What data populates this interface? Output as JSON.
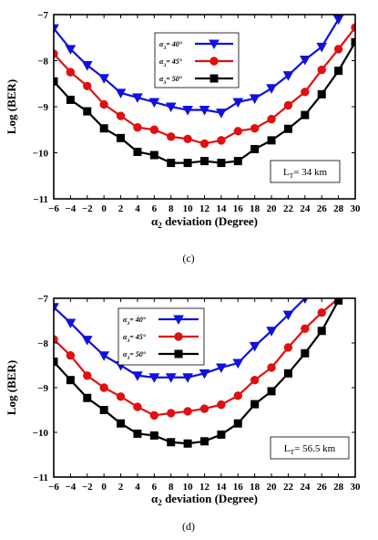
{
  "chart_data": [
    {
      "type": "line",
      "panel_label": "(c)",
      "xlabel": "α2 deviation (Degree)",
      "ylabel": "Log (BER)",
      "xlim": [
        -6,
        30
      ],
      "ylim": [
        -11,
        -7
      ],
      "xticks": [
        -6,
        -4,
        -2,
        0,
        2,
        4,
        6,
        8,
        10,
        12,
        14,
        16,
        18,
        20,
        22,
        24,
        26,
        28,
        30
      ],
      "yticks": [
        -11,
        -10,
        -9,
        -8,
        -7
      ],
      "grid": false,
      "legend_position": "top-center",
      "annotation": "L_T= 34 km",
      "x": [
        -6,
        -4,
        -2,
        0,
        2,
        4,
        6,
        8,
        10,
        12,
        14,
        16,
        18,
        20,
        22,
        24,
        26,
        28,
        30
      ],
      "series": [
        {
          "name": "α3= 40°",
          "color": "#1010e0",
          "marker": "triangle-down",
          "values": [
            -7.3,
            -7.75,
            -8.1,
            -8.38,
            -8.7,
            -8.8,
            -8.9,
            -9.0,
            -9.07,
            -9.07,
            -9.13,
            -8.9,
            -8.82,
            -8.6,
            -8.32,
            -7.98,
            -7.7,
            -7.1,
            null
          ]
        },
        {
          "name": "α3= 45°",
          "color": "#e01010",
          "marker": "circle",
          "values": [
            -7.85,
            -8.25,
            -8.55,
            -8.95,
            -9.2,
            -9.45,
            -9.5,
            -9.65,
            -9.7,
            -9.8,
            -9.73,
            -9.53,
            -9.47,
            -9.27,
            -8.97,
            -8.68,
            -8.2,
            -7.75,
            -7.28
          ]
        },
        {
          "name": "α3= 50°",
          "color": "#000000",
          "marker": "square",
          "values": [
            -8.45,
            -8.85,
            -9.1,
            -9.47,
            -9.68,
            -9.98,
            -10.05,
            -10.22,
            -10.22,
            -10.18,
            -10.22,
            -10.18,
            -9.92,
            -9.73,
            -9.48,
            -9.18,
            -8.73,
            -8.22,
            -7.6
          ]
        }
      ]
    },
    {
      "type": "line",
      "panel_label": "(d)",
      "xlabel": "α2 deviation (Degree)",
      "ylabel": "Log (BER)",
      "xlim": [
        -6,
        30
      ],
      "ylim": [
        -11,
        -7
      ],
      "xticks": [
        -6,
        -4,
        -2,
        0,
        2,
        4,
        6,
        8,
        10,
        12,
        14,
        16,
        18,
        20,
        22,
        24,
        26,
        28,
        30
      ],
      "yticks": [
        -11,
        -10,
        -9,
        -8,
        -7
      ],
      "grid": false,
      "legend_position": "top-center",
      "annotation": "L_T= 56.5 km",
      "x": [
        -6,
        -4,
        -2,
        0,
        2,
        4,
        6,
        8,
        10,
        12,
        14,
        16,
        18,
        20,
        22,
        24,
        26,
        28,
        30
      ],
      "series": [
        {
          "name": "α3= 40°",
          "color": "#1010e0",
          "marker": "triangle-down",
          "values": [
            -7.2,
            -7.55,
            -7.93,
            -8.28,
            -8.5,
            -8.73,
            -8.77,
            -8.77,
            -8.77,
            -8.68,
            -8.55,
            -8.45,
            -8.07,
            -7.73,
            -7.37,
            -7.0,
            null,
            null,
            null
          ]
        },
        {
          "name": "α3= 45°",
          "color": "#e01010",
          "marker": "circle",
          "values": [
            -7.92,
            -8.28,
            -8.73,
            -9.0,
            -9.2,
            -9.43,
            -9.62,
            -9.57,
            -9.53,
            -9.47,
            -9.38,
            -9.18,
            -8.83,
            -8.55,
            -8.1,
            -7.68,
            -7.32,
            -7.0,
            null
          ]
        },
        {
          "name": "α3= 50°",
          "color": "#000000",
          "marker": "square",
          "values": [
            -8.42,
            -8.83,
            -9.23,
            -9.5,
            -9.8,
            -10.03,
            -10.07,
            -10.22,
            -10.25,
            -10.2,
            -10.05,
            -9.8,
            -9.37,
            -9.08,
            -8.68,
            -8.23,
            -7.73,
            -7.05,
            null
          ]
        }
      ]
    }
  ]
}
